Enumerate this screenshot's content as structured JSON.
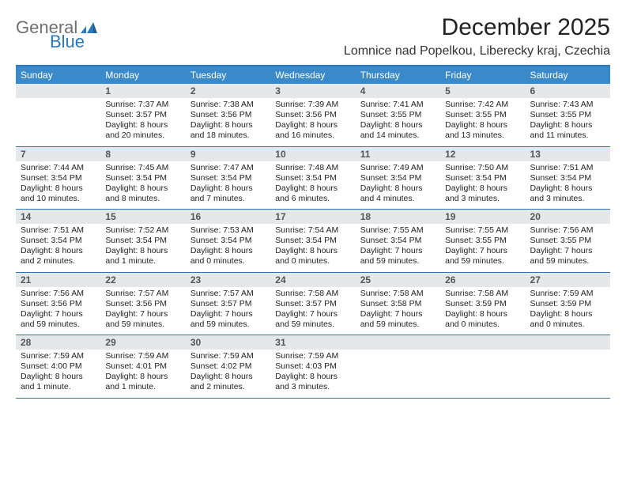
{
  "brand": {
    "general": "General",
    "blue": "Blue",
    "general_color": "#6f6f6f",
    "blue_color": "#2a78bb",
    "fontsize": 22
  },
  "header": {
    "month_title": "December 2025",
    "location": "Lomnice nad Popelkou, Liberecky kraj, Czechia",
    "title_fontsize": 30,
    "location_fontsize": 16,
    "title_color": "#222222"
  },
  "styling": {
    "dow_background": "#3a8ac9",
    "dow_text_color": "#ffffff",
    "band_background": "#e6e7e8",
    "band_text_color": "#555555",
    "divider_color": "#2a78bb",
    "body_text_color": "#222222",
    "page_background": "#ffffff",
    "dow_fontsize": 12,
    "daynum_fontsize": 12,
    "body_fontsize": 10.5,
    "cell_min_height": 56
  },
  "days_of_week": [
    "Sunday",
    "Monday",
    "Tuesday",
    "Wednesday",
    "Thursday",
    "Friday",
    "Saturday"
  ],
  "weeks": [
    [
      {
        "blank": true
      },
      {
        "n": "1",
        "sunrise": "Sunrise: 7:37 AM",
        "sunset": "Sunset: 3:57 PM",
        "daylight": "Daylight: 8 hours and 20 minutes."
      },
      {
        "n": "2",
        "sunrise": "Sunrise: 7:38 AM",
        "sunset": "Sunset: 3:56 PM",
        "daylight": "Daylight: 8 hours and 18 minutes."
      },
      {
        "n": "3",
        "sunrise": "Sunrise: 7:39 AM",
        "sunset": "Sunset: 3:56 PM",
        "daylight": "Daylight: 8 hours and 16 minutes."
      },
      {
        "n": "4",
        "sunrise": "Sunrise: 7:41 AM",
        "sunset": "Sunset: 3:55 PM",
        "daylight": "Daylight: 8 hours and 14 minutes."
      },
      {
        "n": "5",
        "sunrise": "Sunrise: 7:42 AM",
        "sunset": "Sunset: 3:55 PM",
        "daylight": "Daylight: 8 hours and 13 minutes."
      },
      {
        "n": "6",
        "sunrise": "Sunrise: 7:43 AM",
        "sunset": "Sunset: 3:55 PM",
        "daylight": "Daylight: 8 hours and 11 minutes."
      }
    ],
    [
      {
        "n": "7",
        "sunrise": "Sunrise: 7:44 AM",
        "sunset": "Sunset: 3:54 PM",
        "daylight": "Daylight: 8 hours and 10 minutes."
      },
      {
        "n": "8",
        "sunrise": "Sunrise: 7:45 AM",
        "sunset": "Sunset: 3:54 PM",
        "daylight": "Daylight: 8 hours and 8 minutes."
      },
      {
        "n": "9",
        "sunrise": "Sunrise: 7:47 AM",
        "sunset": "Sunset: 3:54 PM",
        "daylight": "Daylight: 8 hours and 7 minutes."
      },
      {
        "n": "10",
        "sunrise": "Sunrise: 7:48 AM",
        "sunset": "Sunset: 3:54 PM",
        "daylight": "Daylight: 8 hours and 6 minutes."
      },
      {
        "n": "11",
        "sunrise": "Sunrise: 7:49 AM",
        "sunset": "Sunset: 3:54 PM",
        "daylight": "Daylight: 8 hours and 4 minutes."
      },
      {
        "n": "12",
        "sunrise": "Sunrise: 7:50 AM",
        "sunset": "Sunset: 3:54 PM",
        "daylight": "Daylight: 8 hours and 3 minutes."
      },
      {
        "n": "13",
        "sunrise": "Sunrise: 7:51 AM",
        "sunset": "Sunset: 3:54 PM",
        "daylight": "Daylight: 8 hours and 3 minutes."
      }
    ],
    [
      {
        "n": "14",
        "sunrise": "Sunrise: 7:51 AM",
        "sunset": "Sunset: 3:54 PM",
        "daylight": "Daylight: 8 hours and 2 minutes."
      },
      {
        "n": "15",
        "sunrise": "Sunrise: 7:52 AM",
        "sunset": "Sunset: 3:54 PM",
        "daylight": "Daylight: 8 hours and 1 minute."
      },
      {
        "n": "16",
        "sunrise": "Sunrise: 7:53 AM",
        "sunset": "Sunset: 3:54 PM",
        "daylight": "Daylight: 8 hours and 0 minutes."
      },
      {
        "n": "17",
        "sunrise": "Sunrise: 7:54 AM",
        "sunset": "Sunset: 3:54 PM",
        "daylight": "Daylight: 8 hours and 0 minutes."
      },
      {
        "n": "18",
        "sunrise": "Sunrise: 7:55 AM",
        "sunset": "Sunset: 3:54 PM",
        "daylight": "Daylight: 7 hours and 59 minutes."
      },
      {
        "n": "19",
        "sunrise": "Sunrise: 7:55 AM",
        "sunset": "Sunset: 3:55 PM",
        "daylight": "Daylight: 7 hours and 59 minutes."
      },
      {
        "n": "20",
        "sunrise": "Sunrise: 7:56 AM",
        "sunset": "Sunset: 3:55 PM",
        "daylight": "Daylight: 7 hours and 59 minutes."
      }
    ],
    [
      {
        "n": "21",
        "sunrise": "Sunrise: 7:56 AM",
        "sunset": "Sunset: 3:56 PM",
        "daylight": "Daylight: 7 hours and 59 minutes."
      },
      {
        "n": "22",
        "sunrise": "Sunrise: 7:57 AM",
        "sunset": "Sunset: 3:56 PM",
        "daylight": "Daylight: 7 hours and 59 minutes."
      },
      {
        "n": "23",
        "sunrise": "Sunrise: 7:57 AM",
        "sunset": "Sunset: 3:57 PM",
        "daylight": "Daylight: 7 hours and 59 minutes."
      },
      {
        "n": "24",
        "sunrise": "Sunrise: 7:58 AM",
        "sunset": "Sunset: 3:57 PM",
        "daylight": "Daylight: 7 hours and 59 minutes."
      },
      {
        "n": "25",
        "sunrise": "Sunrise: 7:58 AM",
        "sunset": "Sunset: 3:58 PM",
        "daylight": "Daylight: 7 hours and 59 minutes."
      },
      {
        "n": "26",
        "sunrise": "Sunrise: 7:58 AM",
        "sunset": "Sunset: 3:59 PM",
        "daylight": "Daylight: 8 hours and 0 minutes."
      },
      {
        "n": "27",
        "sunrise": "Sunrise: 7:59 AM",
        "sunset": "Sunset: 3:59 PM",
        "daylight": "Daylight: 8 hours and 0 minutes."
      }
    ],
    [
      {
        "n": "28",
        "sunrise": "Sunrise: 7:59 AM",
        "sunset": "Sunset: 4:00 PM",
        "daylight": "Daylight: 8 hours and 1 minute."
      },
      {
        "n": "29",
        "sunrise": "Sunrise: 7:59 AM",
        "sunset": "Sunset: 4:01 PM",
        "daylight": "Daylight: 8 hours and 1 minute."
      },
      {
        "n": "30",
        "sunrise": "Sunrise: 7:59 AM",
        "sunset": "Sunset: 4:02 PM",
        "daylight": "Daylight: 8 hours and 2 minutes."
      },
      {
        "n": "31",
        "sunrise": "Sunrise: 7:59 AM",
        "sunset": "Sunset: 4:03 PM",
        "daylight": "Daylight: 8 hours and 3 minutes."
      },
      {
        "blank": true
      },
      {
        "blank": true
      },
      {
        "blank": true
      }
    ]
  ]
}
